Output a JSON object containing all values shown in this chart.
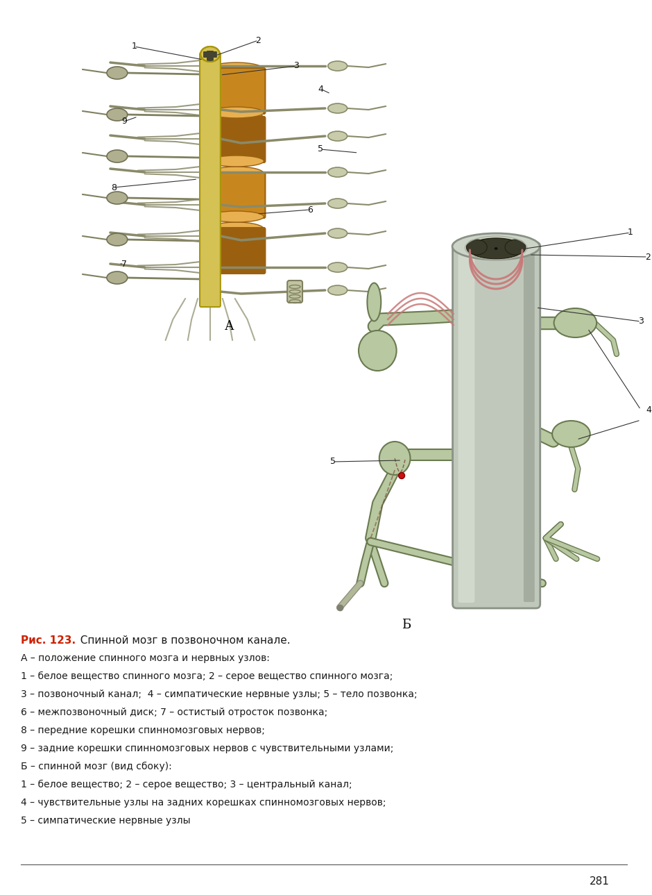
{
  "bg_color": "#ffffff",
  "caption_bold": "Рис. 123.",
  "caption_bold_color": "#cc2200",
  "caption_title": "  Спинной мозг в позвоночном канале.",
  "caption_lines": [
    "А – положение спинного мозга и нервных узлов:",
    "1 – белое вещество спинного мозга; 2 – серое вещество спинного мозга;",
    "3 – позвоночный канал;  4 – симпатические нервные узлы; 5 – тело позвонка;",
    "6 – межпозвоночный диск; 7 – остистый отросток позвонка;",
    "8 – передние корешки спинномозговых нервов;",
    "9 – задние корешки спинномозговых нервов с чувствительными узлами;",
    "Б – спинной мозг (вид сбоку):",
    "1 – белое вещество; 2 – серое вещество; 3 – центральный канал;",
    "4 – чувствительные узлы на задних корешках спинномозговых нервов;",
    "5 – симпатические нервные узлы"
  ],
  "page_number": "281",
  "label_A": "А",
  "label_B": "Б",
  "vert_color": "#c8871e",
  "vert_dark": "#9a6010",
  "vert_top_color": "#e8b050",
  "cord_color": "#d4c255",
  "cord_dark": "#a8960a",
  "nerve_fill": "#c8ccaa",
  "nerve_edge": "#8a8a6a",
  "nerve_fill_b": "#b8c8a0",
  "nerve_edge_b": "#6a7a50",
  "cyl_color": "#c0c8bc",
  "cyl_dark": "#8a9285",
  "grey_matter": "#3a3a2a",
  "pink_nerve": "#c87878"
}
